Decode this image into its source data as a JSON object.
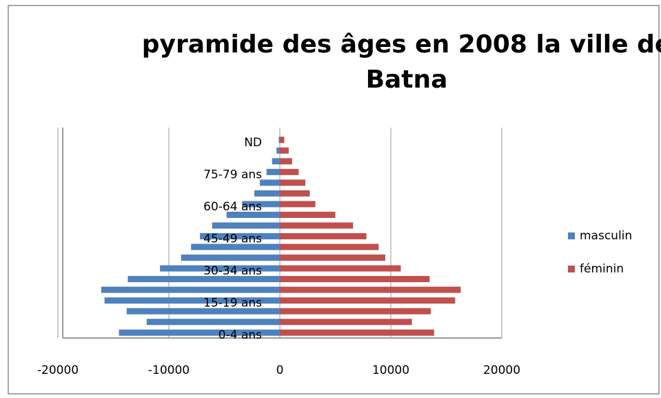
{
  "chart_data": {
    "type": "bar",
    "orientation": "horizontal",
    "stacked": true,
    "title": "pyramide des âges en 2008 la ville de Batna",
    "categories": [
      "0-4 ans",
      null,
      null,
      "15-19 ans",
      null,
      null,
      "30-34 ans",
      null,
      null,
      "45-49 ans",
      null,
      null,
      "60-64 ans",
      null,
      null,
      "75-79 ans",
      null,
      null,
      "ND"
    ],
    "series": [
      {
        "name": "masculin",
        "color": "#4f81bd",
        "values": [
          -14500,
          -12000,
          -13800,
          -15800,
          -16100,
          -13700,
          -10800,
          -8900,
          -8000,
          -7200,
          -6100,
          -4800,
          -3400,
          -2300,
          -1800,
          -1200,
          -700,
          -300,
          -100
        ]
      },
      {
        "name": "féminin",
        "color": "#c0504d",
        "values": [
          13900,
          11900,
          13600,
          15800,
          16300,
          13500,
          10900,
          9500,
          8900,
          7800,
          6600,
          5000,
          3200,
          2700,
          2300,
          1700,
          1100,
          800,
          400
        ]
      }
    ],
    "xlim": [
      -20000,
      20000
    ],
    "xticks": [
      -20000,
      -10000,
      0,
      10000,
      20000
    ],
    "grid": true,
    "legend": "right"
  }
}
